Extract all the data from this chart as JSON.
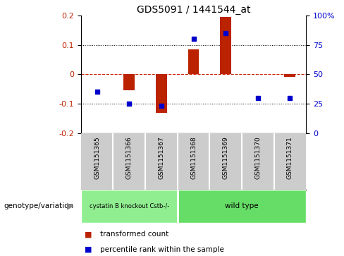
{
  "title": "GDS5091 / 1441544_at",
  "samples": [
    "GSM1151365",
    "GSM1151366",
    "GSM1151367",
    "GSM1151368",
    "GSM1151369",
    "GSM1151370",
    "GSM1151371"
  ],
  "bar_values": [
    0.0,
    -0.055,
    -0.13,
    0.085,
    0.195,
    0.0,
    -0.01
  ],
  "percentile_values": [
    35,
    25,
    23,
    80,
    85,
    30,
    30
  ],
  "groups": [
    {
      "label": "cystatin B knockout Cstb-/-",
      "start": 0,
      "end": 3,
      "color": "#90ee90"
    },
    {
      "label": "wild type",
      "start": 3,
      "end": 7,
      "color": "#66dd66"
    }
  ],
  "ylim_left": [
    -0.2,
    0.2
  ],
  "ylim_right": [
    0,
    100
  ],
  "yticks_left": [
    -0.2,
    -0.1,
    0,
    0.1,
    0.2
  ],
  "yticks_right": [
    0,
    25,
    50,
    75,
    100
  ],
  "bar_color": "#bb2200",
  "scatter_color": "#0000cc",
  "zero_line_color": "#cc2200",
  "grid_color": "#000000",
  "bg_color": "#ffffff",
  "plot_bg": "#ffffff",
  "genotype_label": "genotype/variation",
  "legend_bar": "transformed count",
  "legend_scatter": "percentile rank within the sample",
  "sample_bg_color": "#cccccc",
  "right_ytick_labels": [
    "0",
    "25",
    "50",
    "75",
    "100%"
  ],
  "left_ytick_labels": [
    "-0.2",
    "-0.1",
    "0",
    "0.1",
    "0.2"
  ]
}
